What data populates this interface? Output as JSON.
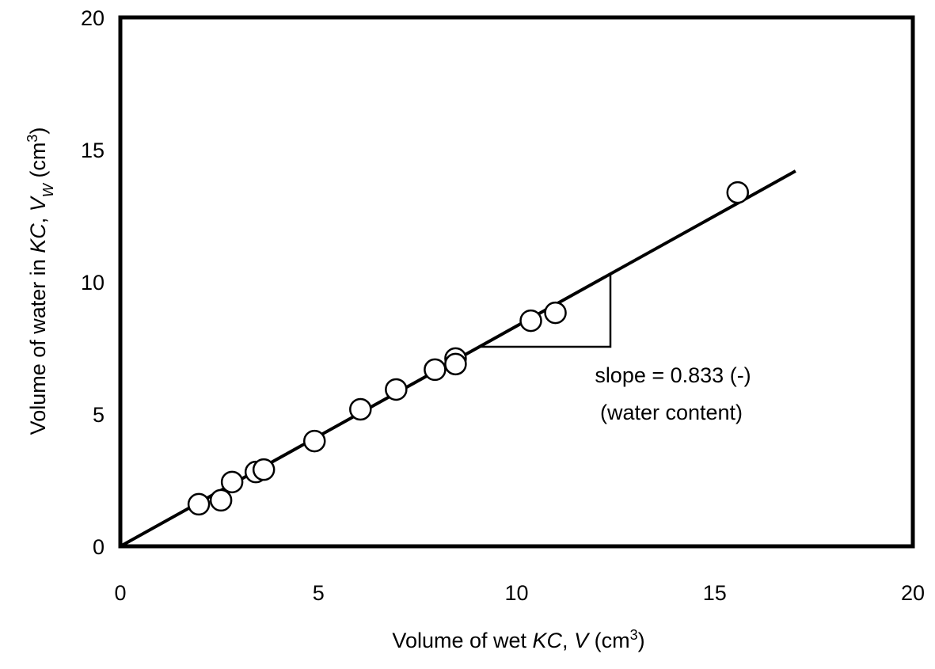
{
  "chart_data": {
    "type": "scatter",
    "x": [
      1.98,
      2.54,
      2.82,
      3.42,
      3.62,
      4.9,
      6.06,
      6.96,
      7.94,
      8.46,
      8.46,
      10.36,
      10.98,
      15.58
    ],
    "values": [
      1.59,
      1.74,
      2.43,
      2.81,
      2.9,
      3.98,
      5.18,
      5.93,
      6.68,
      7.1,
      6.89,
      8.53,
      8.83,
      13.38
    ],
    "fit_line": {
      "x": [
        0,
        17.04
      ],
      "values": [
        0,
        14.19
      ]
    },
    "xlim": [
      0,
      20
    ],
    "xticks": [
      0,
      5,
      10,
      15,
      20
    ],
    "ylim": [
      0,
      20
    ],
    "yticks": [
      0,
      5,
      10,
      15,
      20
    ],
    "xlabel": [
      {
        "text": "Volume of wet "
      },
      {
        "text": "KC",
        "style": "italic"
      },
      {
        "text": ",  "
      },
      {
        "text": "V",
        "style": "italic"
      },
      {
        "text": " (cm"
      },
      {
        "text": "3",
        "style": "sup"
      },
      {
        "text": ")"
      }
    ],
    "ylabel": [
      {
        "text": "Volume of water in "
      },
      {
        "text": "KC",
        "style": "italic"
      },
      {
        "text": ",  "
      },
      {
        "text": "V",
        "style": "italic"
      },
      {
        "text": "W",
        "style": "sub-italic"
      },
      {
        "text": " (cm"
      },
      {
        "text": "3",
        "style": "sup"
      },
      {
        "text": ")"
      }
    ],
    "annotations": [
      "slope = 0.833 (-)",
      "(water content)"
    ],
    "grid": false
  }
}
